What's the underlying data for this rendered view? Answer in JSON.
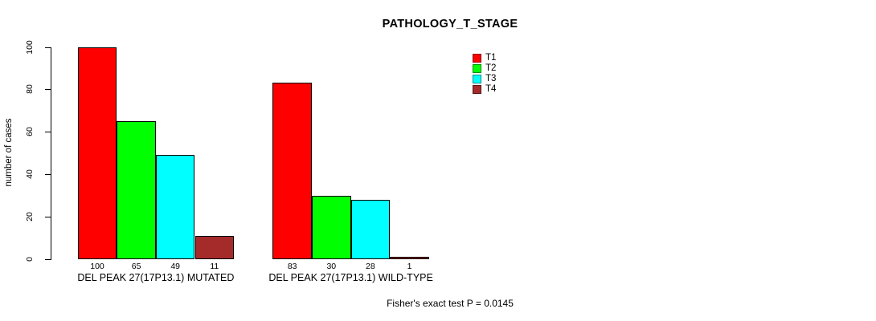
{
  "chart_data": {
    "type": "bar",
    "title": "PATHOLOGY_T_STAGE",
    "ylabel": "number of cases",
    "xlabel": "",
    "ylim": [
      0,
      100
    ],
    "yticks": [
      0,
      20,
      40,
      60,
      80,
      100
    ],
    "grid": false,
    "legend_position": "top-right",
    "bar_value_labels_shown": true,
    "categories": [
      "DEL PEAK 27(17P13.1) MUTATED",
      "DEL PEAK 27(17P13.1) WILD-TYPE"
    ],
    "series": [
      {
        "name": "T1",
        "color": "#ff0000",
        "values": [
          100,
          83
        ]
      },
      {
        "name": "T2",
        "color": "#00ff00",
        "values": [
          65,
          30
        ]
      },
      {
        "name": "T3",
        "color": "#00ffff",
        "values": [
          49,
          28
        ]
      },
      {
        "name": "T4",
        "color": "#a52a2a",
        "values": [
          11,
          1
        ]
      }
    ],
    "annotation": "Fisher's exact test P = 0.0145"
  }
}
